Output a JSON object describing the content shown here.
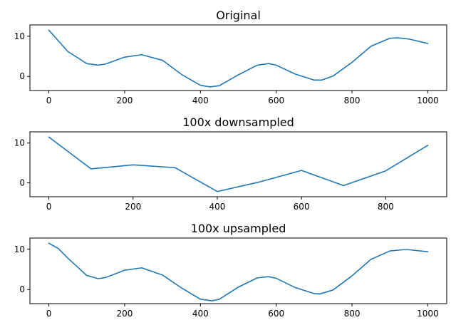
{
  "chart_data": [
    {
      "type": "line",
      "title": "Original",
      "xlabel": "",
      "ylabel": "",
      "xlim": [
        -50,
        1050
      ],
      "ylim": [
        -3.5,
        12.8
      ],
      "xticks": [
        0,
        200,
        400,
        600,
        800,
        1000
      ],
      "yticks": [
        0,
        10
      ],
      "grid": false,
      "line_color": "#1f77b4",
      "x": [
        0,
        50,
        100,
        130,
        150,
        200,
        245,
        300,
        350,
        400,
        425,
        450,
        500,
        550,
        580,
        600,
        650,
        700,
        720,
        750,
        800,
        850,
        900,
        920,
        950,
        1000
      ],
      "y": [
        11.5,
        6.2,
        3.2,
        2.8,
        3.1,
        4.8,
        5.4,
        4.0,
        0.5,
        -2.2,
        -2.6,
        -2.3,
        0.4,
        2.8,
        3.2,
        2.8,
        0.6,
        -0.9,
        -0.9,
        0.1,
        3.5,
        7.5,
        9.5,
        9.6,
        9.3,
        8.2
      ]
    },
    {
      "type": "line",
      "title": "100x downsampled",
      "xlabel": "",
      "ylabel": "",
      "xlim": [
        -45,
        945
      ],
      "ylim": [
        -3.5,
        12.8
      ],
      "xticks": [
        0,
        200,
        400,
        600,
        800
      ],
      "yticks": [
        0,
        10
      ],
      "grid": false,
      "line_color": "#1f77b4",
      "x": [
        0,
        100,
        200,
        300,
        400,
        500,
        600,
        700,
        800,
        900
      ],
      "y": [
        11.5,
        3.5,
        4.5,
        3.8,
        -2.2,
        0.2,
        3.1,
        -0.7,
        3.0,
        9.4
      ]
    },
    {
      "type": "line",
      "title": "100x upsampled",
      "xlabel": "",
      "ylabel": "",
      "xlim": [
        -50,
        1050
      ],
      "ylim": [
        -3.5,
        12.8
      ],
      "xticks": [
        0,
        200,
        400,
        600,
        800,
        1000
      ],
      "yticks": [
        0,
        10
      ],
      "grid": false,
      "line_color": "#1f77b4",
      "x": [
        0,
        25,
        50,
        100,
        130,
        150,
        200,
        245,
        300,
        350,
        400,
        430,
        450,
        500,
        550,
        580,
        600,
        650,
        700,
        715,
        750,
        800,
        850,
        900,
        935,
        950,
        1000
      ],
      "y": [
        11.5,
        10.2,
        7.8,
        3.5,
        2.7,
        3.0,
        4.8,
        5.4,
        3.6,
        0.4,
        -2.4,
        -2.8,
        -2.4,
        0.6,
        2.9,
        3.2,
        2.8,
        0.5,
        -1.0,
        -1.1,
        -0.1,
        3.4,
        7.5,
        9.6,
        9.9,
        9.9,
        9.4
      ]
    }
  ]
}
